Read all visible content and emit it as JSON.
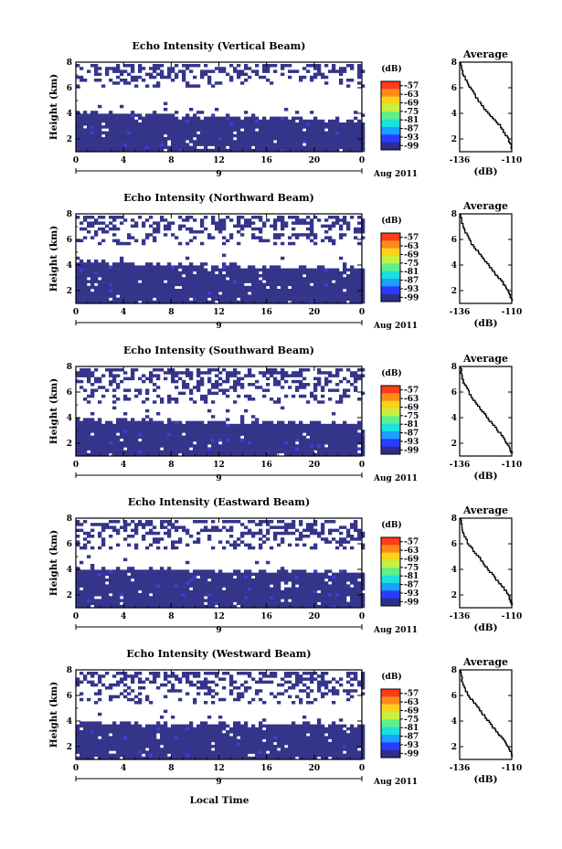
{
  "figure": {
    "xlabel_bottom": "Local Time"
  },
  "chart_data": [
    {
      "type": "heatmap",
      "title": "Echo Intensity (Vertical Beam)",
      "ylabel": "Height (km)",
      "x_ticks": [
        "0",
        "4",
        "8",
        "12",
        "16",
        "20",
        "0"
      ],
      "xlim": [
        0,
        24
      ],
      "y_ticks": [
        "2",
        "4",
        "6",
        "8"
      ],
      "ylim": [
        1,
        8
      ],
      "date_tick": "9",
      "date_label": "Aug 2011",
      "colorbar": {
        "unit": "(dB)",
        "ticks": [
          "-57",
          "-63",
          "-69",
          "-75",
          "-81",
          "-87",
          "-93",
          "-99"
        ],
        "colors": [
          "#ff3b1a",
          "#ff8a1a",
          "#ffd21a",
          "#c8f040",
          "#5ef08a",
          "#1ae0e0",
          "#1aa0ff",
          "#2a3cff",
          "#2c2f8a"
        ]
      },
      "echo_layer": {
        "base_km": 1,
        "top_km_start": 4.2,
        "top_km_end": 3.6,
        "upper_scatter_from_km": 6.2,
        "upper_scatter_to_km": 8
      }
    },
    {
      "type": "heatmap",
      "title": "Echo Intensity (Northward Beam)",
      "ylabel": "Height (km)",
      "x_ticks": [
        "0",
        "4",
        "8",
        "12",
        "16",
        "20",
        "0"
      ],
      "xlim": [
        0,
        24
      ],
      "y_ticks": [
        "2",
        "4",
        "6",
        "8"
      ],
      "ylim": [
        1,
        8
      ],
      "date_tick": "9",
      "date_label": "Aug 2011",
      "colorbar": {
        "unit": "(dB)",
        "ticks": [
          "-57",
          "-63",
          "-69",
          "-75",
          "-81",
          "-87",
          "-93",
          "-99"
        ],
        "colors": [
          "#ff3b1a",
          "#ff8a1a",
          "#ffd21a",
          "#c8f040",
          "#5ef08a",
          "#1ae0e0",
          "#1aa0ff",
          "#2a3cff",
          "#2c2f8a"
        ]
      },
      "echo_layer": {
        "base_km": 1,
        "top_km_start": 4.4,
        "top_km_end": 3.8,
        "upper_scatter_from_km": 5.6,
        "upper_scatter_to_km": 8
      }
    },
    {
      "type": "heatmap",
      "title": "Echo Intensity (Southward Beam)",
      "ylabel": "Height (km)",
      "x_ticks": [
        "0",
        "4",
        "8",
        "12",
        "16",
        "20",
        "0"
      ],
      "xlim": [
        0,
        24
      ],
      "y_ticks": [
        "2",
        "4",
        "6",
        "8"
      ],
      "ylim": [
        1,
        8
      ],
      "date_tick": "9",
      "date_label": "Aug 2011",
      "colorbar": {
        "unit": "(dB)",
        "ticks": [
          "-57",
          "-63",
          "-69",
          "-75",
          "-81",
          "-87",
          "-93",
          "-99"
        ],
        "colors": [
          "#ff3b1a",
          "#ff8a1a",
          "#ffd21a",
          "#c8f040",
          "#5ef08a",
          "#1ae0e0",
          "#1aa0ff",
          "#2a3cff",
          "#2c2f8a"
        ]
      },
      "echo_layer": {
        "base_km": 1,
        "top_km_start": 4.0,
        "top_km_end": 3.7,
        "upper_scatter_from_km": 5.2,
        "upper_scatter_to_km": 8
      }
    },
    {
      "type": "heatmap",
      "title": "Echo Intensity (Eastward Beam)",
      "ylabel": "Height (km)",
      "x_ticks": [
        "0",
        "4",
        "8",
        "12",
        "16",
        "20",
        "0"
      ],
      "xlim": [
        0,
        24
      ],
      "y_ticks": [
        "2",
        "4",
        "6",
        "8"
      ],
      "ylim": [
        1,
        8
      ],
      "date_tick": "9",
      "date_label": "Aug 2011",
      "colorbar": {
        "unit": "(dB)",
        "ticks": [
          "-57",
          "-63",
          "-69",
          "-75",
          "-81",
          "-87",
          "-93",
          "-99"
        ],
        "colors": [
          "#ff3b1a",
          "#ff8a1a",
          "#ffd21a",
          "#c8f040",
          "#5ef08a",
          "#1ae0e0",
          "#1aa0ff",
          "#2a3cff",
          "#2c2f8a"
        ]
      },
      "echo_layer": {
        "base_km": 1,
        "top_km_start": 4.2,
        "top_km_end": 3.9,
        "upper_scatter_from_km": 5.6,
        "upper_scatter_to_km": 8
      }
    },
    {
      "type": "heatmap",
      "title": "Echo Intensity (Westward Beam)",
      "ylabel": "Height (km)",
      "x_ticks": [
        "0",
        "4",
        "8",
        "12",
        "16",
        "20",
        "0"
      ],
      "xlim": [
        0,
        24
      ],
      "y_ticks": [
        "2",
        "4",
        "6",
        "8"
      ],
      "ylim": [
        1,
        8
      ],
      "date_tick": "9",
      "date_label": "Aug 2011",
      "colorbar": {
        "unit": "(dB)",
        "ticks": [
          "-57",
          "-63",
          "-69",
          "-75",
          "-81",
          "-87",
          "-93",
          "-99"
        ],
        "colors": [
          "#ff3b1a",
          "#ff8a1a",
          "#ffd21a",
          "#c8f040",
          "#5ef08a",
          "#1ae0e0",
          "#1aa0ff",
          "#2a3cff",
          "#2c2f8a"
        ]
      },
      "echo_layer": {
        "base_km": 1,
        "top_km_start": 4.0,
        "top_km_end": 3.8,
        "upper_scatter_from_km": 5.5,
        "upper_scatter_to_km": 8
      }
    }
  ],
  "profiles": [
    {
      "type": "line",
      "title": "Average",
      "xlabel": "(dB)",
      "x_ticks": [
        "-136",
        "-110"
      ],
      "xlim": [
        -136,
        -110
      ],
      "y_ticks": [
        "2",
        "4",
        "6",
        "8"
      ],
      "ylim": [
        1,
        8
      ],
      "points": [
        [
          -135.5,
          8
        ],
        [
          -135,
          7.5
        ],
        [
          -134,
          6.9
        ],
        [
          -132,
          6.3
        ],
        [
          -130,
          5.8
        ],
        [
          -128,
          5.2
        ],
        [
          -125,
          4.6
        ],
        [
          -122,
          4.0
        ],
        [
          -119,
          3.5
        ],
        [
          -116,
          3.0
        ],
        [
          -114,
          2.5
        ],
        [
          -112,
          2.0
        ],
        [
          -110.5,
          1.5
        ],
        [
          -110,
          1.2
        ]
      ]
    },
    {
      "type": "line",
      "title": "Average",
      "xlabel": "(dB)",
      "x_ticks": [
        "-136",
        "-110"
      ],
      "xlim": [
        -136,
        -110
      ],
      "y_ticks": [
        "2",
        "4",
        "6",
        "8"
      ],
      "ylim": [
        1,
        8
      ],
      "points": [
        [
          -135.5,
          8
        ],
        [
          -135,
          7.4
        ],
        [
          -134,
          6.8
        ],
        [
          -132,
          6.2
        ],
        [
          -130,
          5.6
        ],
        [
          -127,
          5.0
        ],
        [
          -124,
          4.4
        ],
        [
          -121,
          3.8
        ],
        [
          -118,
          3.2
        ],
        [
          -115,
          2.7
        ],
        [
          -113,
          2.2
        ],
        [
          -111,
          1.7
        ],
        [
          -110,
          1.2
        ]
      ]
    },
    {
      "type": "line",
      "title": "Average",
      "xlabel": "(dB)",
      "x_ticks": [
        "-136",
        "-110"
      ],
      "xlim": [
        -136,
        -110
      ],
      "y_ticks": [
        "2",
        "4",
        "6",
        "8"
      ],
      "ylim": [
        1,
        8
      ],
      "points": [
        [
          -135.5,
          8
        ],
        [
          -135,
          7.3
        ],
        [
          -134,
          6.7
        ],
        [
          -132,
          6.1
        ],
        [
          -130,
          5.5
        ],
        [
          -127,
          4.9
        ],
        [
          -124,
          4.3
        ],
        [
          -121,
          3.7
        ],
        [
          -118,
          3.1
        ],
        [
          -115,
          2.6
        ],
        [
          -113,
          2.1
        ],
        [
          -111,
          1.6
        ],
        [
          -110,
          1.2
        ]
      ]
    },
    {
      "type": "line",
      "title": "Average",
      "xlabel": "(dB)",
      "x_ticks": [
        "-136",
        "-110"
      ],
      "xlim": [
        -136,
        -110
      ],
      "y_ticks": [
        "2",
        "4",
        "6",
        "8"
      ],
      "ylim": [
        1,
        8
      ],
      "points": [
        [
          -135.5,
          8
        ],
        [
          -135,
          7.4
        ],
        [
          -134,
          6.7
        ],
        [
          -132,
          6.0
        ],
        [
          -129,
          5.4
        ],
        [
          -126,
          4.8
        ],
        [
          -123,
          4.2
        ],
        [
          -120,
          3.6
        ],
        [
          -117,
          3.0
        ],
        [
          -114,
          2.5
        ],
        [
          -112,
          2.0
        ],
        [
          -110.5,
          1.5
        ],
        [
          -110,
          1.2
        ]
      ]
    },
    {
      "type": "line",
      "title": "Average",
      "xlabel": "(dB)",
      "x_ticks": [
        "-136",
        "-110"
      ],
      "xlim": [
        -136,
        -110
      ],
      "y_ticks": [
        "2",
        "4",
        "6",
        "8"
      ],
      "ylim": [
        1,
        8
      ],
      "points": [
        [
          -135.5,
          8
        ],
        [
          -135,
          7.3
        ],
        [
          -134,
          6.6
        ],
        [
          -132,
          6.0
        ],
        [
          -129,
          5.4
        ],
        [
          -126,
          4.8
        ],
        [
          -123,
          4.2
        ],
        [
          -120,
          3.6
        ],
        [
          -117,
          3.0
        ],
        [
          -114,
          2.5
        ],
        [
          -112,
          2.0
        ],
        [
          -110.5,
          1.5
        ],
        [
          -110,
          1.2
        ]
      ]
    }
  ]
}
